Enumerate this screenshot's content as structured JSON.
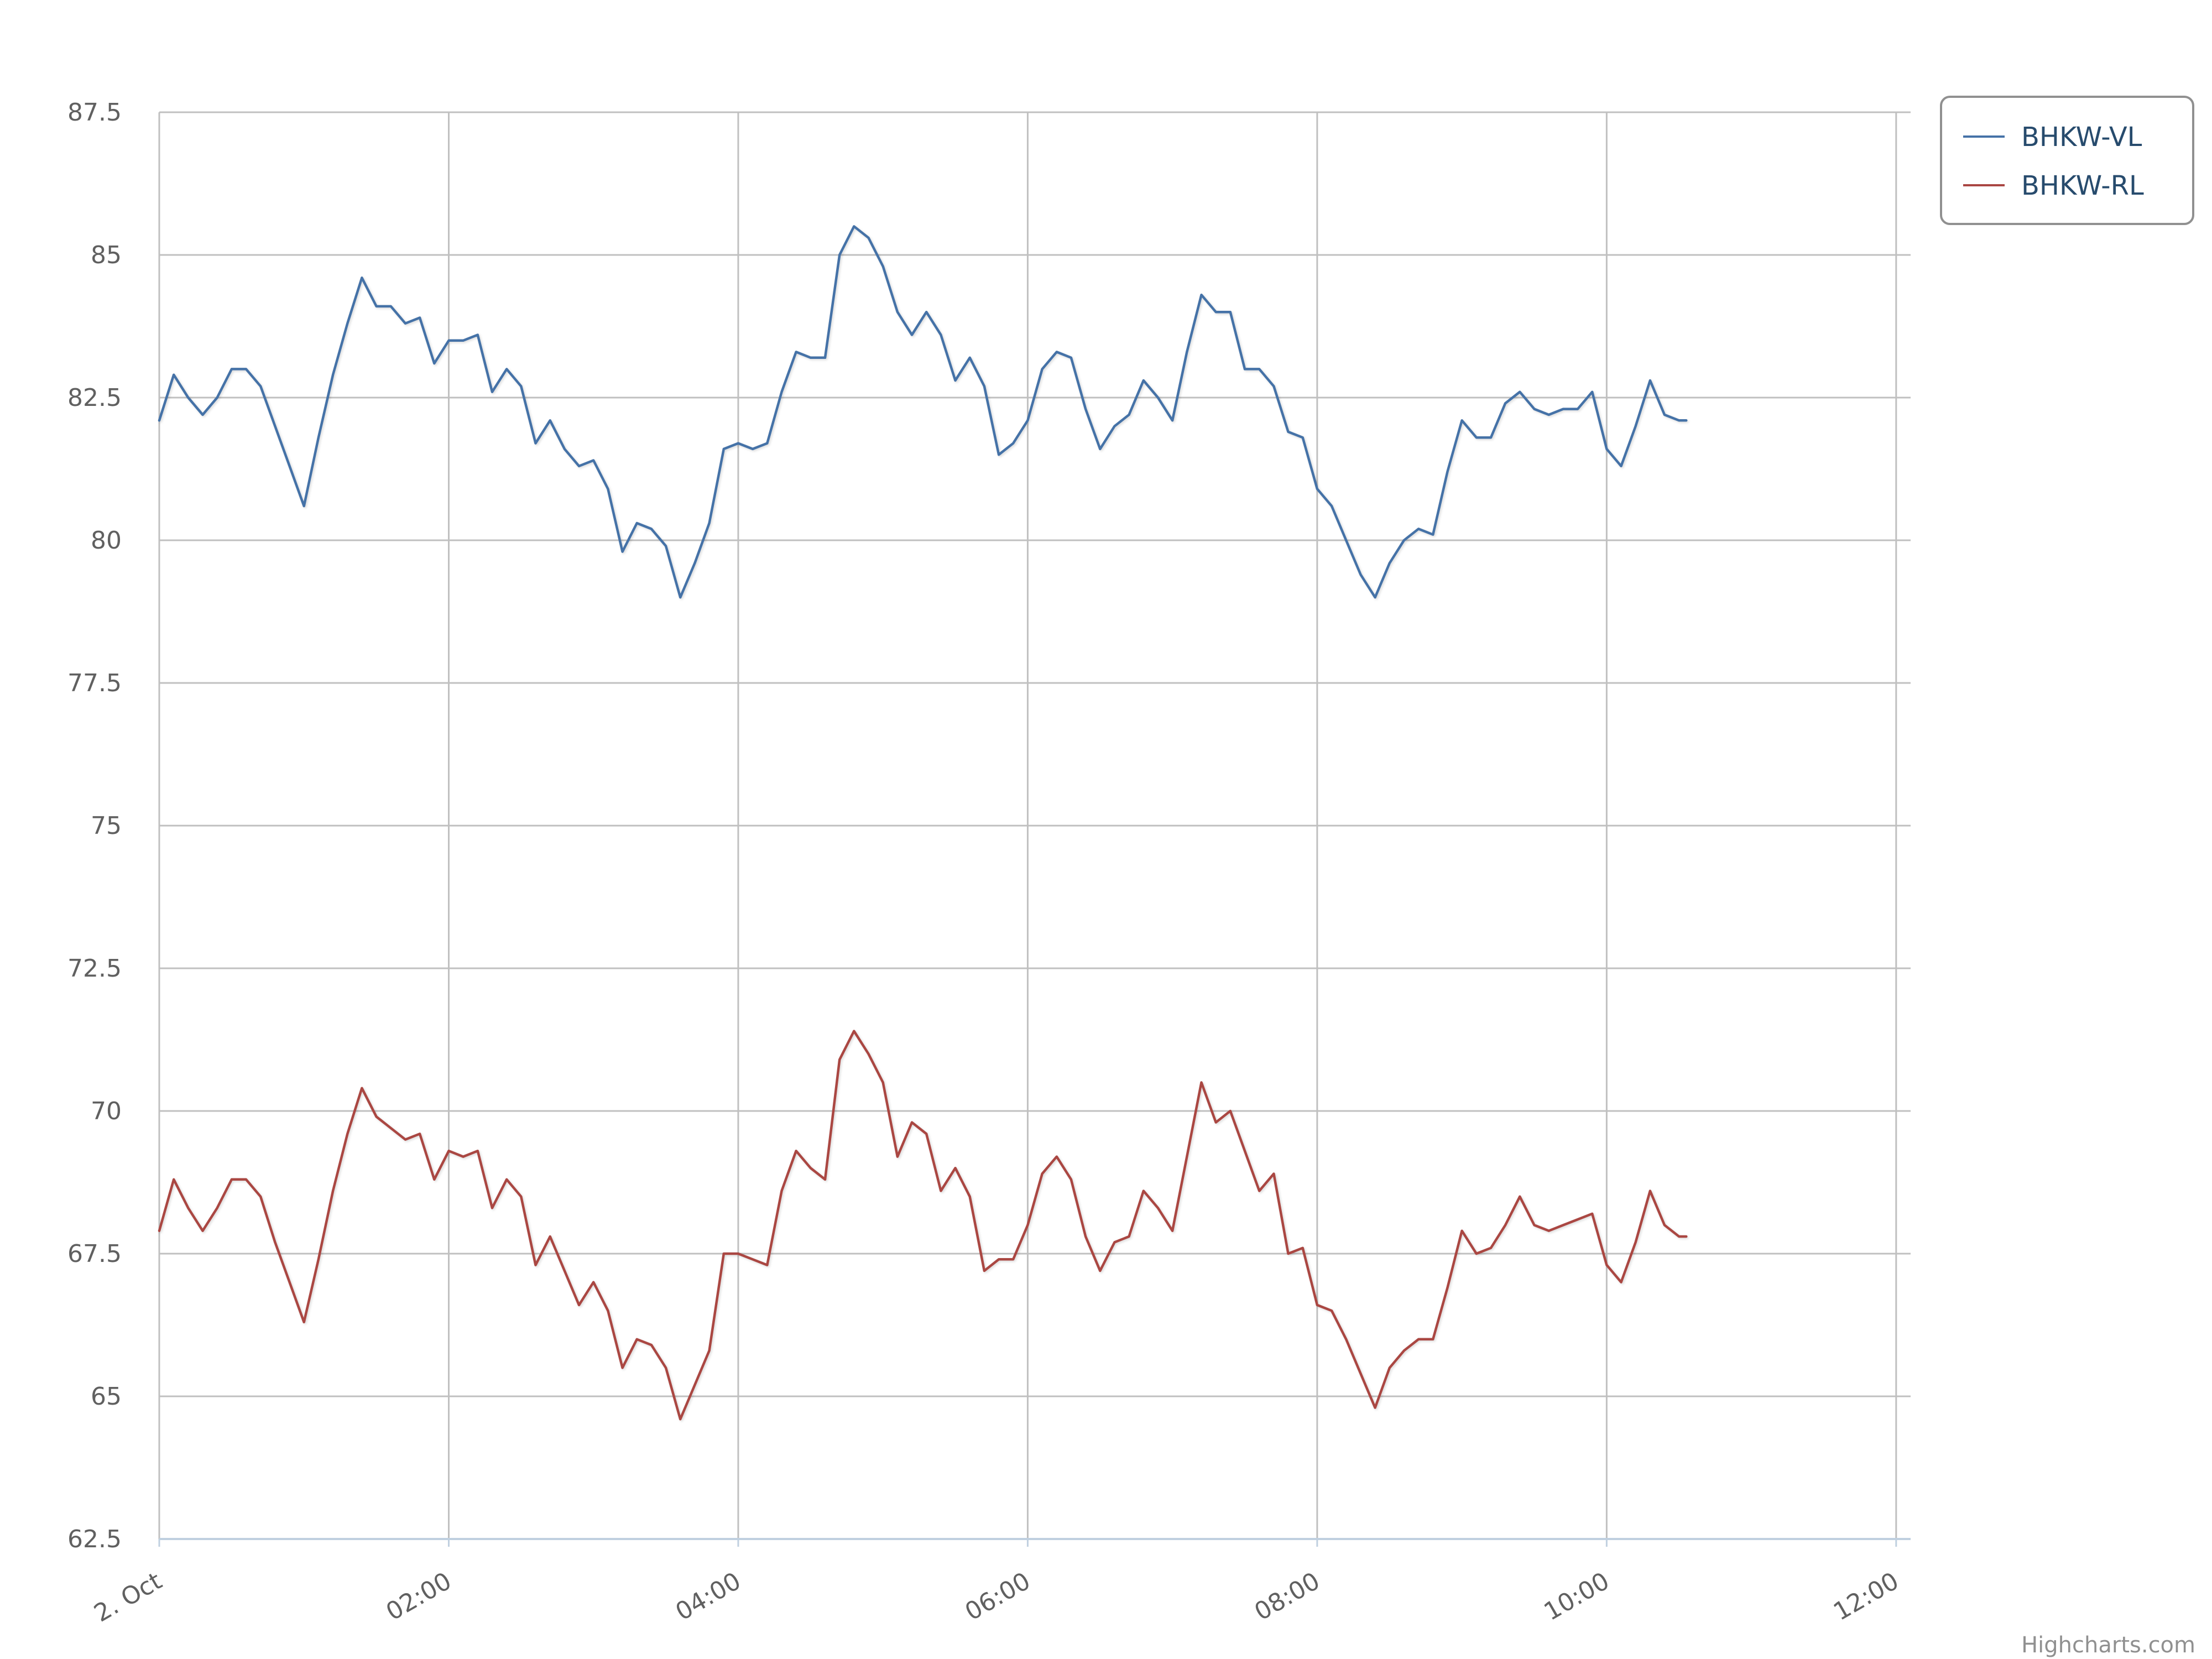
{
  "chart_data": {
    "type": "line",
    "title": "",
    "xlabel": "",
    "ylabel": "",
    "x_tick_labels": [
      "2. Oct",
      "02:00",
      "04:00",
      "06:00",
      "08:00",
      "10:00",
      "12:00"
    ],
    "x_tick_hours": [
      0,
      2,
      4,
      6,
      8,
      10,
      12
    ],
    "x_range_hours": [
      0,
      12.1
    ],
    "y_ticks": [
      62.5,
      65,
      67.5,
      70,
      72.5,
      75,
      77.5,
      80,
      82.5,
      85,
      87.5
    ],
    "y_tick_labels": [
      "62.5",
      "65",
      "67.5",
      "70",
      "72.5",
      "75",
      "77.5",
      "80",
      "82.5",
      "85",
      "87.5"
    ],
    "ylim": [
      62.5,
      87.5
    ],
    "grid": true,
    "legend_position": "top-right",
    "series": [
      {
        "name": "BHKW-VL",
        "color": "#4572a7",
        "points": [
          [
            0.0,
            82.1
          ],
          [
            0.1,
            82.9
          ],
          [
            0.2,
            82.5
          ],
          [
            0.3,
            82.2
          ],
          [
            0.4,
            82.5
          ],
          [
            0.5,
            83.0
          ],
          [
            0.6,
            83.0
          ],
          [
            0.7,
            82.7
          ],
          [
            0.8,
            82.0
          ],
          [
            0.9,
            81.3
          ],
          [
            1.0,
            80.6
          ],
          [
            1.1,
            81.8
          ],
          [
            1.2,
            82.9
          ],
          [
            1.3,
            83.8
          ],
          [
            1.4,
            84.6
          ],
          [
            1.5,
            84.1
          ],
          [
            1.6,
            84.1
          ],
          [
            1.7,
            83.8
          ],
          [
            1.8,
            83.9
          ],
          [
            1.9,
            83.1
          ],
          [
            2.0,
            83.5
          ],
          [
            2.1,
            83.5
          ],
          [
            2.2,
            83.6
          ],
          [
            2.3,
            82.6
          ],
          [
            2.4,
            83.0
          ],
          [
            2.5,
            82.7
          ],
          [
            2.6,
            81.7
          ],
          [
            2.7,
            82.1
          ],
          [
            2.8,
            81.6
          ],
          [
            2.9,
            81.3
          ],
          [
            3.0,
            81.4
          ],
          [
            3.1,
            80.9
          ],
          [
            3.2,
            79.8
          ],
          [
            3.3,
            80.3
          ],
          [
            3.4,
            80.2
          ],
          [
            3.5,
            79.9
          ],
          [
            3.6,
            79.0
          ],
          [
            3.7,
            79.6
          ],
          [
            3.8,
            80.3
          ],
          [
            3.9,
            81.6
          ],
          [
            4.0,
            81.7
          ],
          [
            4.1,
            81.6
          ],
          [
            4.2,
            81.7
          ],
          [
            4.3,
            82.6
          ],
          [
            4.4,
            83.3
          ],
          [
            4.5,
            83.2
          ],
          [
            4.6,
            83.2
          ],
          [
            4.7,
            85.0
          ],
          [
            4.8,
            85.5
          ],
          [
            4.9,
            85.3
          ],
          [
            5.0,
            84.8
          ],
          [
            5.1,
            84.0
          ],
          [
            5.2,
            83.6
          ],
          [
            5.3,
            84.0
          ],
          [
            5.4,
            83.6
          ],
          [
            5.5,
            82.8
          ],
          [
            5.6,
            83.2
          ],
          [
            5.7,
            82.7
          ],
          [
            5.8,
            81.5
          ],
          [
            5.9,
            81.7
          ],
          [
            6.0,
            82.1
          ],
          [
            6.1,
            83.0
          ],
          [
            6.2,
            83.3
          ],
          [
            6.3,
            83.2
          ],
          [
            6.4,
            82.3
          ],
          [
            6.5,
            81.6
          ],
          [
            6.6,
            82.0
          ],
          [
            6.7,
            82.2
          ],
          [
            6.8,
            82.8
          ],
          [
            6.9,
            82.5
          ],
          [
            7.0,
            82.1
          ],
          [
            7.1,
            83.3
          ],
          [
            7.2,
            84.3
          ],
          [
            7.3,
            84.0
          ],
          [
            7.4,
            84.0
          ],
          [
            7.5,
            83.0
          ],
          [
            7.6,
            83.0
          ],
          [
            7.7,
            82.7
          ],
          [
            7.8,
            81.9
          ],
          [
            7.9,
            81.8
          ],
          [
            8.0,
            80.9
          ],
          [
            8.1,
            80.6
          ],
          [
            8.2,
            80.0
          ],
          [
            8.3,
            79.4
          ],
          [
            8.4,
            79.0
          ],
          [
            8.5,
            79.6
          ],
          [
            8.6,
            80.0
          ],
          [
            8.7,
            80.2
          ],
          [
            8.8,
            80.1
          ],
          [
            8.9,
            81.2
          ],
          [
            9.0,
            82.1
          ],
          [
            9.1,
            81.8
          ],
          [
            9.2,
            81.8
          ],
          [
            9.3,
            82.4
          ],
          [
            9.4,
            82.6
          ],
          [
            9.5,
            82.3
          ],
          [
            9.6,
            82.2
          ],
          [
            9.7,
            82.3
          ],
          [
            9.8,
            82.3
          ],
          [
            9.9,
            82.6
          ],
          [
            10.0,
            81.6
          ],
          [
            10.1,
            81.3
          ],
          [
            10.2,
            82.0
          ],
          [
            10.3,
            82.8
          ],
          [
            10.4,
            82.2
          ],
          [
            10.5,
            82.1
          ],
          [
            10.55,
            82.1
          ]
        ]
      },
      {
        "name": "BHKW-RL",
        "color": "#aa4643",
        "points": [
          [
            0.0,
            67.9
          ],
          [
            0.1,
            68.8
          ],
          [
            0.2,
            68.3
          ],
          [
            0.3,
            67.9
          ],
          [
            0.4,
            68.3
          ],
          [
            0.5,
            68.8
          ],
          [
            0.6,
            68.8
          ],
          [
            0.7,
            68.5
          ],
          [
            0.8,
            67.7
          ],
          [
            0.9,
            67.0
          ],
          [
            1.0,
            66.3
          ],
          [
            1.1,
            67.4
          ],
          [
            1.2,
            68.6
          ],
          [
            1.3,
            69.6
          ],
          [
            1.4,
            70.4
          ],
          [
            1.5,
            69.9
          ],
          [
            1.6,
            69.7
          ],
          [
            1.7,
            69.5
          ],
          [
            1.8,
            69.6
          ],
          [
            1.9,
            68.8
          ],
          [
            2.0,
            69.3
          ],
          [
            2.1,
            69.2
          ],
          [
            2.2,
            69.3
          ],
          [
            2.3,
            68.3
          ],
          [
            2.4,
            68.8
          ],
          [
            2.5,
            68.5
          ],
          [
            2.6,
            67.3
          ],
          [
            2.7,
            67.8
          ],
          [
            2.8,
            67.2
          ],
          [
            2.9,
            66.6
          ],
          [
            3.0,
            67.0
          ],
          [
            3.1,
            66.5
          ],
          [
            3.2,
            65.5
          ],
          [
            3.3,
            66.0
          ],
          [
            3.4,
            65.9
          ],
          [
            3.5,
            65.5
          ],
          [
            3.6,
            64.6
          ],
          [
            3.7,
            65.2
          ],
          [
            3.8,
            65.8
          ],
          [
            3.9,
            67.5
          ],
          [
            4.0,
            67.5
          ],
          [
            4.1,
            67.4
          ],
          [
            4.2,
            67.3
          ],
          [
            4.3,
            68.6
          ],
          [
            4.4,
            69.3
          ],
          [
            4.5,
            69.0
          ],
          [
            4.6,
            68.8
          ],
          [
            4.7,
            70.9
          ],
          [
            4.8,
            71.4
          ],
          [
            4.9,
            71.0
          ],
          [
            5.0,
            70.5
          ],
          [
            5.1,
            69.2
          ],
          [
            5.2,
            69.8
          ],
          [
            5.3,
            69.6
          ],
          [
            5.4,
            68.6
          ],
          [
            5.5,
            69.0
          ],
          [
            5.6,
            68.5
          ],
          [
            5.7,
            67.2
          ],
          [
            5.8,
            67.4
          ],
          [
            5.9,
            67.4
          ],
          [
            6.0,
            68.0
          ],
          [
            6.1,
            68.9
          ],
          [
            6.2,
            69.2
          ],
          [
            6.3,
            68.8
          ],
          [
            6.4,
            67.8
          ],
          [
            6.5,
            67.2
          ],
          [
            6.6,
            67.7
          ],
          [
            6.7,
            67.8
          ],
          [
            6.8,
            68.6
          ],
          [
            6.9,
            68.3
          ],
          [
            7.0,
            67.9
          ],
          [
            7.1,
            69.2
          ],
          [
            7.2,
            70.5
          ],
          [
            7.3,
            69.8
          ],
          [
            7.4,
            70.0
          ],
          [
            7.5,
            69.3
          ],
          [
            7.6,
            68.6
          ],
          [
            7.7,
            68.9
          ],
          [
            7.8,
            67.5
          ],
          [
            7.9,
            67.6
          ],
          [
            8.0,
            66.6
          ],
          [
            8.1,
            66.5
          ],
          [
            8.2,
            66.0
          ],
          [
            8.3,
            65.4
          ],
          [
            8.4,
            64.8
          ],
          [
            8.5,
            65.5
          ],
          [
            8.6,
            65.8
          ],
          [
            8.7,
            66.0
          ],
          [
            8.8,
            66.0
          ],
          [
            8.9,
            66.9
          ],
          [
            9.0,
            67.9
          ],
          [
            9.1,
            67.5
          ],
          [
            9.2,
            67.6
          ],
          [
            9.3,
            68.0
          ],
          [
            9.4,
            68.5
          ],
          [
            9.5,
            68.0
          ],
          [
            9.6,
            67.9
          ],
          [
            9.7,
            68.0
          ],
          [
            9.8,
            68.1
          ],
          [
            9.9,
            68.2
          ],
          [
            10.0,
            67.3
          ],
          [
            10.1,
            67.0
          ],
          [
            10.2,
            67.7
          ],
          [
            10.3,
            68.6
          ],
          [
            10.4,
            68.0
          ],
          [
            10.5,
            67.8
          ],
          [
            10.55,
            67.8
          ]
        ]
      }
    ]
  },
  "credits": "Highcharts.com",
  "colors": {
    "grid": "#c0c0c0",
    "axis_line": "#c0d0e0",
    "legend_border": "#909090"
  }
}
